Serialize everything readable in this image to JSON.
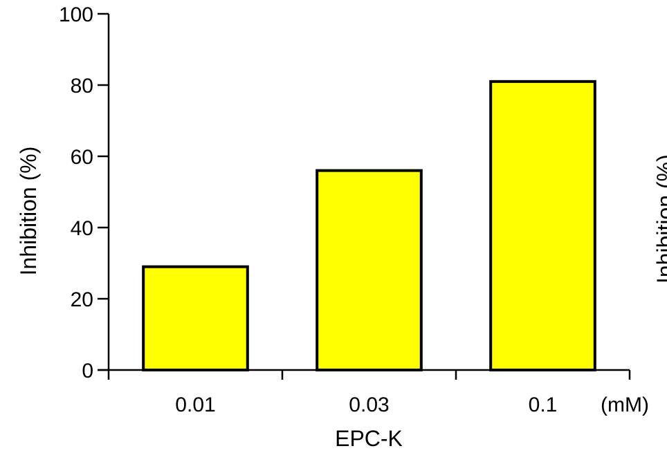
{
  "chart_data": {
    "type": "bar",
    "categories": [
      "0.01",
      "0.03",
      "0.1"
    ],
    "values": [
      29,
      56,
      81
    ],
    "xlabel": "EPC-K",
    "x_unit": "(mM)",
    "ylabel": "Inhibition (%)",
    "ylim": [
      0,
      100
    ],
    "yticks": [
      0,
      20,
      40,
      60,
      80,
      100
    ],
    "grid": false,
    "legend": "none",
    "bar_color": "#ffff00",
    "bar_edge_color": "#000000",
    "clipped_right_label": "Inhibition (%)"
  }
}
